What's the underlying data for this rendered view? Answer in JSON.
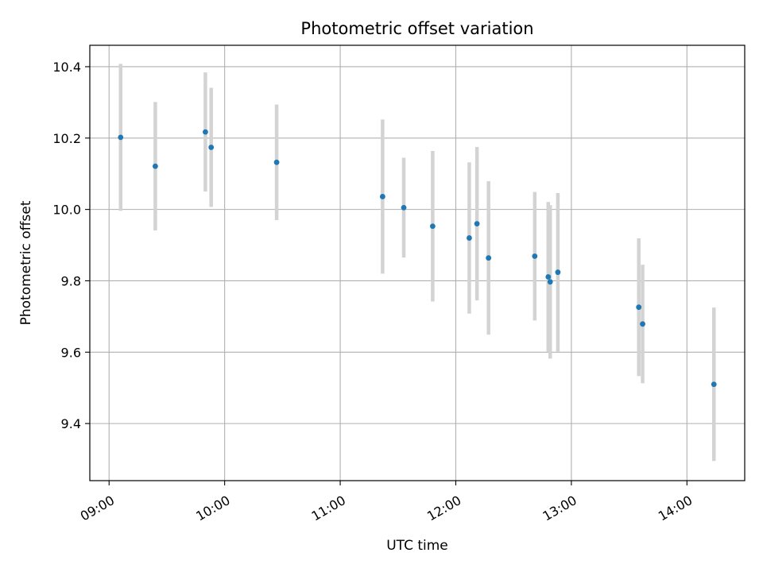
{
  "chart_data": {
    "type": "scatter",
    "title": "Photometric offset variation",
    "xlabel": "UTC time",
    "ylabel": "Photometric offset",
    "xlim": [
      "08:50",
      "14:30"
    ],
    "ylim": [
      9.24,
      10.46
    ],
    "x_ticks": [
      "09:00",
      "10:00",
      "11:00",
      "12:00",
      "13:00",
      "14:00"
    ],
    "y_ticks": [
      "9.4",
      "9.6",
      "9.8",
      "10.0",
      "10.2",
      "10.4"
    ],
    "grid": true,
    "point_color": "#1f77b4",
    "errorbar_color": "#d3d3d3",
    "points": [
      {
        "t": "09:06",
        "y": 10.202,
        "err": 0.206
      },
      {
        "t": "09:24",
        "y": 10.121,
        "err": 0.18
      },
      {
        "t": "09:50",
        "y": 10.217,
        "err": 0.167
      },
      {
        "t": "09:53",
        "y": 10.174,
        "err": 0.167
      },
      {
        "t": "10:27",
        "y": 10.132,
        "err": 0.162
      },
      {
        "t": "11:22",
        "y": 10.036,
        "err": 0.216
      },
      {
        "t": "11:33",
        "y": 10.005,
        "err": 0.14
      },
      {
        "t": "11:48",
        "y": 9.953,
        "err": 0.211
      },
      {
        "t": "12:07",
        "y": 9.92,
        "err": 0.212
      },
      {
        "t": "12:11",
        "y": 9.96,
        "err": 0.215
      },
      {
        "t": "12:17",
        "y": 9.864,
        "err": 0.215
      },
      {
        "t": "12:41",
        "y": 9.869,
        "err": 0.18
      },
      {
        "t": "12:48",
        "y": 9.811,
        "err": 0.21
      },
      {
        "t": "12:49",
        "y": 9.797,
        "err": 0.215
      },
      {
        "t": "12:53",
        "y": 9.824,
        "err": 0.222
      },
      {
        "t": "13:35",
        "y": 9.726,
        "err": 0.193
      },
      {
        "t": "13:37",
        "y": 9.679,
        "err": 0.166
      },
      {
        "t": "14:14",
        "y": 9.51,
        "err": 0.215
      }
    ]
  }
}
